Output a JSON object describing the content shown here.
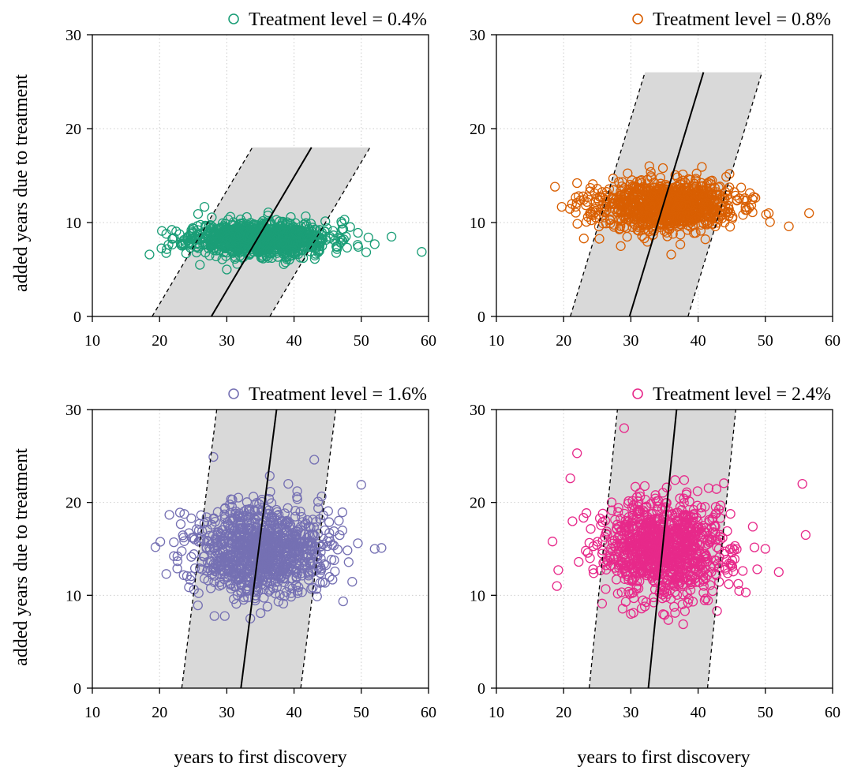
{
  "figure": {
    "shared_ylabel": "added years due to treatment",
    "shared_xlabel": "years to first discovery"
  },
  "chart_data": [
    {
      "type": "scatter",
      "legend": "Treatment level = 0.4%",
      "color": "#1b9e77",
      "xlim": [
        10,
        60
      ],
      "ylim": [
        0,
        30
      ],
      "xticks": [
        10,
        20,
        30,
        40,
        50,
        60
      ],
      "yticks": [
        0,
        10,
        20,
        30
      ],
      "grid": true,
      "legend_position": "top",
      "point_cloud": {
        "x_mean": 35,
        "x_sd": 5.2,
        "y_mean": 8.3,
        "y_sd": 0.9,
        "n": 1000,
        "seed": 11
      },
      "outliers": [
        [
          18.5,
          6.6
        ],
        [
          21,
          8.8
        ],
        [
          52,
          7.7
        ],
        [
          54.5,
          8.5
        ],
        [
          47.5,
          10.3
        ],
        [
          30,
          5
        ],
        [
          26,
          5.5
        ]
      ],
      "fit_line": [
        [
          27.7,
          0
        ],
        [
          42.6,
          18
        ]
      ],
      "band_lower": [
        [
          36.4,
          0
        ],
        [
          51.3,
          18
        ]
      ],
      "band_upper": [
        [
          18.9,
          0
        ],
        [
          33.8,
          18
        ]
      ]
    },
    {
      "type": "scatter",
      "legend": "Treatment level = 0.8%",
      "color": "#d95f02",
      "xlim": [
        10,
        60
      ],
      "ylim": [
        0,
        30
      ],
      "xticks": [
        10,
        20,
        30,
        40,
        50,
        60
      ],
      "yticks": [
        0,
        10,
        20,
        30
      ],
      "grid": true,
      "legend_position": "top",
      "point_cloud": {
        "x_mean": 35,
        "x_sd": 5.2,
        "y_mean": 11.8,
        "y_sd": 1.3,
        "n": 1000,
        "seed": 23
      },
      "outliers": [
        [
          22,
          14.2
        ],
        [
          23,
          8.3
        ],
        [
          53.5,
          9.6
        ],
        [
          56.5,
          11
        ],
        [
          50.5,
          11
        ],
        [
          36,
          6.6
        ],
        [
          28.5,
          7.5
        ]
      ],
      "fit_line": [
        [
          29.8,
          0
        ],
        [
          40.8,
          26
        ]
      ],
      "band_lower": [
        [
          38.5,
          0
        ],
        [
          49.5,
          26
        ]
      ],
      "band_upper": [
        [
          21,
          0
        ],
        [
          32.1,
          26
        ]
      ]
    },
    {
      "type": "scatter",
      "legend": "Treatment level = 1.6%",
      "color": "#7570b3",
      "xlim": [
        10,
        60
      ],
      "ylim": [
        0,
        30
      ],
      "xticks": [
        10,
        20,
        30,
        40,
        50,
        60
      ],
      "yticks": [
        0,
        10,
        20,
        30
      ],
      "grid": true,
      "legend_position": "top",
      "point_cloud": {
        "x_mean": 35,
        "x_sd": 4.8,
        "y_mean": 14.8,
        "y_sd": 2.4,
        "n": 1000,
        "seed": 37
      },
      "outliers": [
        [
          21,
          12.3
        ],
        [
          50,
          21.9
        ],
        [
          52,
          15
        ],
        [
          53,
          15.1
        ],
        [
          49.5,
          15.6
        ],
        [
          28,
          24.9
        ],
        [
          43,
          24.6
        ],
        [
          33.5,
          7.5
        ]
      ],
      "fit_line": [
        [
          32.1,
          0
        ],
        [
          37.4,
          30
        ]
      ],
      "band_lower": [
        [
          41,
          0
        ],
        [
          46.2,
          30
        ]
      ],
      "band_upper": [
        [
          23.3,
          0
        ],
        [
          28.5,
          30
        ]
      ]
    },
    {
      "type": "scatter",
      "legend": "Treatment level = 2.4%",
      "color": "#e7298a",
      "xlim": [
        10,
        60
      ],
      "ylim": [
        0,
        30
      ],
      "xticks": [
        10,
        20,
        30,
        40,
        50,
        60
      ],
      "yticks": [
        0,
        10,
        20,
        30
      ],
      "grid": true,
      "legend_position": "top",
      "point_cloud": {
        "x_mean": 35,
        "x_sd": 4.8,
        "y_mean": 15,
        "y_sd": 2.7,
        "n": 1000,
        "seed": 53
      },
      "outliers": [
        [
          19,
          11
        ],
        [
          21,
          22.6
        ],
        [
          22,
          25.3
        ],
        [
          29,
          28
        ],
        [
          55.5,
          22
        ],
        [
          56,
          16.5
        ],
        [
          50,
          15
        ],
        [
          52,
          12.5
        ],
        [
          30,
          8
        ]
      ],
      "fit_line": [
        [
          32.6,
          0
        ],
        [
          36.8,
          30
        ]
      ],
      "band_lower": [
        [
          41.4,
          0
        ],
        [
          45.6,
          30
        ]
      ],
      "band_upper": [
        [
          23.8,
          0
        ],
        [
          28,
          30
        ]
      ]
    }
  ]
}
